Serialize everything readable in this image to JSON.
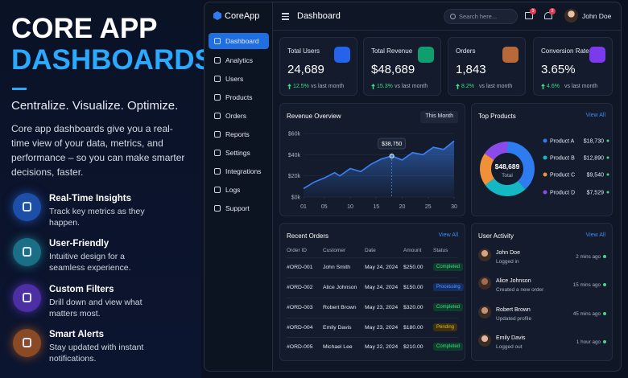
{
  "hero": {
    "title_line1": "CORE APP",
    "title_line2": "DASHBOARDS",
    "tagline": "Centralize. Visualize. Optimize.",
    "description": "Core app dashboards give you a real-time view of your data, metrics, and performance – so you can make smarter decisions, faster.",
    "features": [
      {
        "title": "Real-Time Insights",
        "text": "Track key metrics as they happen."
      },
      {
        "title": "User-Friendly",
        "text": "Intuitive design for a seamless experience."
      },
      {
        "title": "Custom Filters",
        "text": "Drill down and view what matters most."
      },
      {
        "title": "Smart Alerts",
        "text": "Stay updated with instant notifications."
      }
    ]
  },
  "app": {
    "brand": "CoreApp",
    "nav": [
      "Dashboard",
      "Analytics",
      "Users",
      "Products",
      "Orders",
      "Reports",
      "Settings",
      "Integrations",
      "Logs",
      "Support"
    ],
    "header": {
      "title": "Dashboard",
      "search_placeholder": "Search here...",
      "badges": [
        "3",
        "2"
      ],
      "user": "John Doe"
    },
    "stats": [
      {
        "label": "Total Users",
        "value": "24,689",
        "change": "12.5%",
        "note": "vs last month",
        "color": "#2563eb"
      },
      {
        "label": "Total Revenue",
        "value": "$48,689",
        "change": "15.3%",
        "note": "vs last month",
        "color": "#0f9f6e"
      },
      {
        "label": "Orders",
        "value": "1,843",
        "change": "8.2%",
        "note": "vs last month",
        "color": "#b8693a"
      },
      {
        "label": "Conversion Rate",
        "value": "3.65%",
        "change": "4.6%",
        "note": "vs last month",
        "color": "#7c3aed"
      }
    ],
    "orders": {
      "title": "Recent Orders",
      "link": "View All",
      "columns": [
        "Order ID",
        "Customer",
        "Date",
        "Amount",
        "Status"
      ],
      "rows": [
        [
          "#ORD-001",
          "John Smith",
          "May 24, 2024",
          "$250.00",
          "Completed"
        ],
        [
          "#ORD-002",
          "Alice Johnson",
          "May 24, 2024",
          "$150.00",
          "Processing"
        ],
        [
          "#ORD-003",
          "Robert Brown",
          "May 23, 2024",
          "$320.00",
          "Completed"
        ],
        [
          "#ORD-004",
          "Emily Davis",
          "May 23, 2024",
          "$180.00",
          "Pending"
        ],
        [
          "#ORD-005",
          "Michael Lee",
          "May 22, 2024",
          "$210.00",
          "Completed"
        ]
      ]
    },
    "activity": {
      "title": "User Activity",
      "link": "View All",
      "items": [
        {
          "name": "John Doe",
          "action": "Logged in",
          "time": "2 mins ago"
        },
        {
          "name": "Alice Johnson",
          "action": "Created a new order",
          "time": "15 mins ago"
        },
        {
          "name": "Robert Brown",
          "action": "Updated profile",
          "time": "45 mins ago"
        },
        {
          "name": "Emily Davis",
          "action": "Logged out",
          "time": "1 hour ago"
        }
      ]
    }
  },
  "chart_data": [
    {
      "type": "area",
      "title": "Revenue Overview",
      "filter": "This Month",
      "color": "#3b82f6",
      "x": [
        1,
        3,
        5,
        7,
        8,
        10,
        12,
        14,
        16,
        18,
        20,
        22,
        24,
        26,
        28,
        30
      ],
      "values": [
        8000,
        14000,
        18000,
        23000,
        20000,
        27000,
        24000,
        31000,
        36000,
        38750,
        35000,
        42000,
        40000,
        47000,
        45000,
        53000
      ],
      "xlim": [
        1,
        30
      ],
      "xticks": [
        {
          "value": 1,
          "label": "01"
        },
        {
          "value": 5,
          "label": "05"
        },
        10,
        15,
        20,
        25,
        30
      ],
      "ylim": [
        0,
        60000
      ],
      "yticks": [
        {
          "value": 0,
          "label": "$0k"
        },
        {
          "value": 20000,
          "label": "$20k"
        },
        {
          "value": 40000,
          "label": "$40k"
        },
        {
          "value": 60000,
          "label": "$60k"
        }
      ],
      "annotation": {
        "x": 18,
        "value": 38750,
        "label": "$38,750"
      }
    },
    {
      "type": "donut",
      "title": "Top Products",
      "link": "View All",
      "center_label": "$48,689",
      "center_sublabel": "Total",
      "categories": [
        "Product A",
        "Product B",
        "Product C",
        "Product D"
      ],
      "values": [
        18730,
        12890,
        9540,
        7529
      ],
      "value_labels": [
        "$18,730",
        "$12,890",
        "$9,540",
        "$7,529"
      ],
      "colors": [
        "#2f7bf0",
        "#14b8c4",
        "#f0913a",
        "#8b4bea"
      ]
    }
  ]
}
